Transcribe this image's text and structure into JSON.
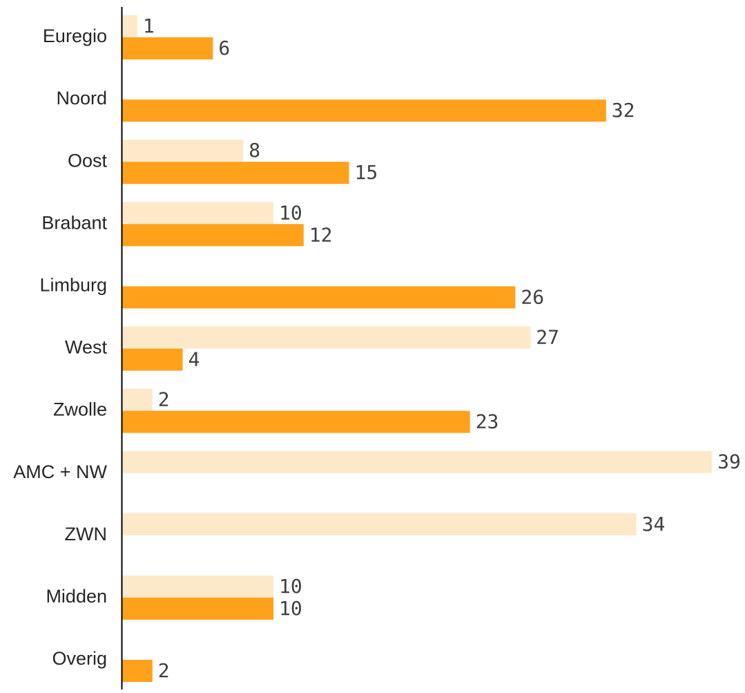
{
  "chart_data": {
    "type": "bar",
    "orientation": "horizontal",
    "categories": [
      "Euregio",
      "Noord",
      "Oost",
      "Brabant",
      "Limburg",
      "West",
      "Zwolle",
      "AMC + NW",
      "ZWN",
      "Midden",
      "Overig"
    ],
    "series": [
      {
        "values": [
          1,
          null,
          8,
          10,
          null,
          27,
          2,
          39,
          34,
          10,
          null
        ]
      },
      {
        "values": [
          6,
          32,
          15,
          12,
          26,
          4,
          23,
          null,
          null,
          10,
          2
        ]
      }
    ],
    "series_colors": [
      "#fde9c9",
      "#ffa11a"
    ],
    "title": "",
    "xlabel": "",
    "ylabel": "",
    "xlim": [
      0,
      39
    ],
    "grid": false,
    "legend": "none",
    "data_labels": true
  }
}
